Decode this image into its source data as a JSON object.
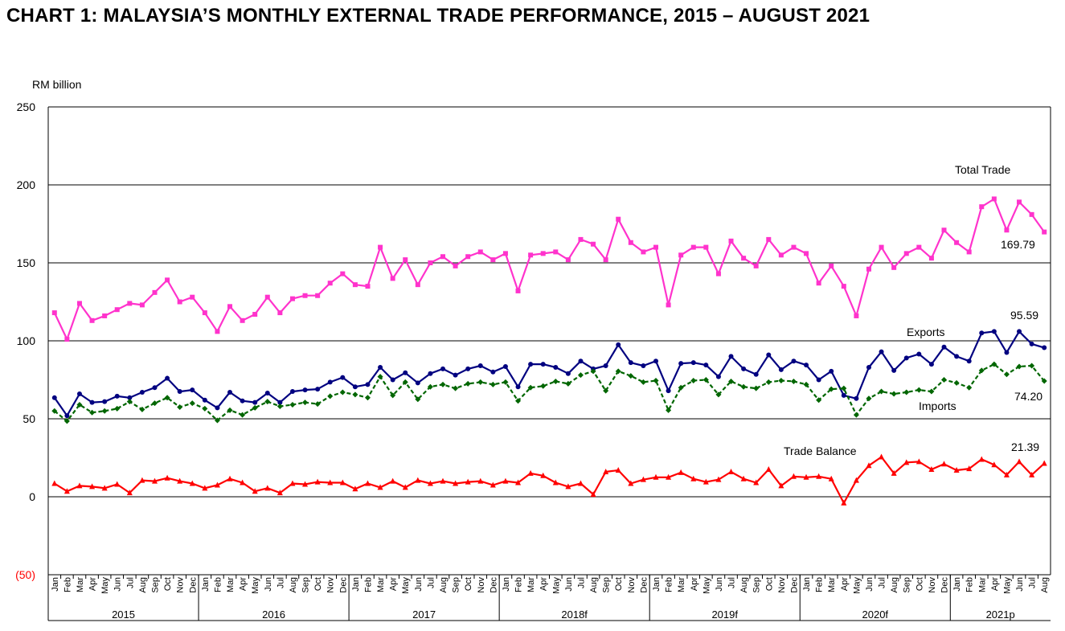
{
  "title": "CHART 1: MALAYSIA’S MONTHLY EXTERNAL TRADE PERFORMANCE, 2015 – AUGUST 2021",
  "chart_data": {
    "type": "line",
    "title": "CHART 1: MALAYSIA’S MONTHLY EXTERNAL TRADE PERFORMANCE, 2015 – AUGUST 2021",
    "ylabel": "RM billion",
    "ylim": [
      -50,
      250
    ],
    "yticks": [
      250,
      200,
      150,
      100,
      50,
      0,
      -50
    ],
    "ytick_labels": [
      "250",
      "200",
      "150",
      "100",
      "50",
      "0",
      "(50)"
    ],
    "grid": true,
    "month_labels": [
      "Jan",
      "Feb",
      "Mar",
      "Apr",
      "May",
      "Jun",
      "Jul",
      "Aug",
      "Sep",
      "Oct",
      "Nov",
      "Dec"
    ],
    "years": [
      {
        "label": "2015",
        "months": 12
      },
      {
        "label": "2016",
        "months": 12
      },
      {
        "label": "2017",
        "months": 12
      },
      {
        "label": "2018f",
        "months": 12
      },
      {
        "label": "2019f",
        "months": 12
      },
      {
        "label": "2020f",
        "months": 12
      },
      {
        "label": "2021p",
        "months": 8
      }
    ],
    "series": [
      {
        "name": "Total Trade",
        "color": "#ff33cc",
        "style": "solid",
        "marker": "square",
        "end_label": "169.79",
        "values": [
          118,
          101,
          124,
          113,
          116,
          120,
          124,
          123,
          131,
          139,
          125,
          128,
          118,
          106,
          122,
          113,
          117,
          128,
          118,
          127,
          129,
          129,
          137,
          143,
          136,
          135,
          160,
          140,
          152,
          136,
          150,
          154,
          148,
          154,
          157,
          152,
          156,
          132,
          155,
          156,
          157,
          152,
          165,
          162,
          152,
          178,
          163,
          157,
          160,
          123,
          155,
          160,
          160,
          143,
          164,
          153,
          148,
          165,
          155,
          160,
          156,
          137,
          148,
          135,
          116,
          146,
          160,
          147,
          156,
          160,
          153,
          171,
          163,
          157,
          186,
          191,
          171,
          189,
          181,
          169.79
        ]
      },
      {
        "name": "Exports",
        "color": "#000080",
        "style": "solid",
        "marker": "circle",
        "end_label": "95.59",
        "values": [
          63.5,
          52,
          66,
          60.5,
          61,
          64.5,
          63.5,
          67,
          70,
          76,
          67.5,
          68.5,
          62,
          57,
          67,
          61.5,
          60.5,
          66.5,
          60.5,
          67.5,
          68.5,
          69,
          73.5,
          76.5,
          70.5,
          72,
          83,
          75,
          79.5,
          73,
          79,
          82,
          78,
          82,
          84,
          80,
          83.5,
          70.5,
          85,
          85,
          83,
          79,
          87,
          82,
          84,
          97.5,
          86,
          84,
          87,
          68,
          85.5,
          86,
          84.5,
          77,
          90,
          82,
          78.5,
          91,
          81.5,
          87,
          84.5,
          75,
          80.5,
          65,
          63,
          83,
          93,
          81,
          89,
          91.5,
          85,
          96,
          90,
          87,
          105,
          106,
          92.5,
          106,
          98,
          95.59
        ]
      },
      {
        "name": "Imports",
        "color": "#006600",
        "style": "dashed",
        "marker": "diamond",
        "end_label": "74.20",
        "values": [
          55,
          48.5,
          59,
          54,
          55,
          56.5,
          61,
          56,
          60,
          63.5,
          57.5,
          60,
          56.5,
          49,
          55.5,
          52.5,
          57,
          61,
          58,
          59,
          60.5,
          59.5,
          64.5,
          67,
          65.5,
          63.5,
          77,
          65,
          73.5,
          62.5,
          70.5,
          72,
          69.5,
          72.5,
          73.5,
          72,
          73.5,
          61.5,
          70,
          71,
          74,
          72.5,
          78,
          80.5,
          68,
          80.5,
          77.5,
          73.5,
          74.5,
          55.5,
          70,
          74.5,
          75,
          65.5,
          74,
          70.5,
          69.5,
          73.5,
          74.5,
          74,
          72,
          62,
          69,
          69.5,
          52.5,
          63,
          67.5,
          66,
          67,
          68.5,
          67.5,
          75,
          73,
          70,
          81,
          85,
          78.5,
          83.5,
          84,
          74.2
        ]
      },
      {
        "name": "Trade Balance",
        "color": "#ff0000",
        "style": "solid",
        "marker": "triangle",
        "end_label": "21.39",
        "values": [
          8.5,
          3.5,
          7,
          6.5,
          5.5,
          8,
          2.5,
          10.5,
          10,
          12,
          10,
          8.5,
          5.5,
          7.5,
          11.5,
          9,
          3.5,
          5.5,
          2.5,
          8.5,
          8,
          9.5,
          9,
          9,
          5,
          8.5,
          6,
          10,
          6,
          10.5,
          8.5,
          10,
          8.5,
          9.5,
          10,
          7.5,
          10,
          9,
          15,
          13.5,
          9,
          6.5,
          8.5,
          1.5,
          16,
          17,
          8.5,
          11,
          12.5,
          12.5,
          15.5,
          11.5,
          9.5,
          11,
          16,
          11.5,
          9,
          17.5,
          7,
          13,
          12.5,
          13,
          11.5,
          -4,
          10.5,
          20,
          25.5,
          15,
          22,
          22.5,
          17.5,
          21,
          17,
          18,
          24,
          20.5,
          14,
          22.5,
          14,
          21.39
        ]
      }
    ],
    "series_labels": [
      "Total Trade",
      "Exports",
      "Imports",
      "Trade Balance"
    ]
  }
}
